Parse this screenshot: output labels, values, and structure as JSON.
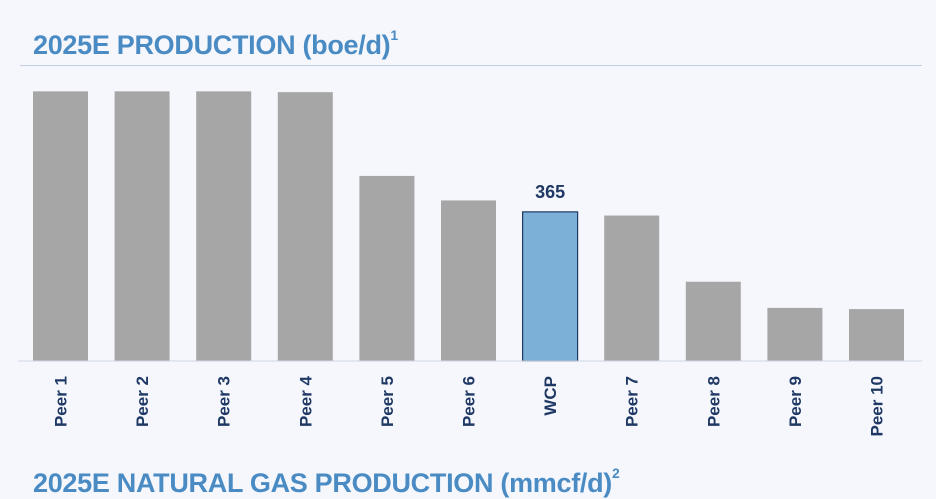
{
  "header": {
    "title": "2025E PRODUCTION (boe/d)",
    "title_footnote": "1"
  },
  "next_section": {
    "title": "2025E NATURAL GAS PRODUCTION (mmcf/d)",
    "title_footnote": "2"
  },
  "colors": {
    "peer_bar": "#a6a6a6",
    "highlight_bar": "#7cb0d6",
    "highlight_border": "#1f3864",
    "label_text": "#1f3864",
    "title": "#4a8bc3"
  },
  "chart_data": {
    "type": "bar",
    "title": "2025E PRODUCTION (boe/d)",
    "categories": [
      "Peer 1",
      "Peer 2",
      "Peer 3",
      "Peer 4",
      "Peer 5",
      "Peer 6",
      "WCP",
      "Peer 7",
      "Peer 8",
      "Peer 9",
      "Peer 10"
    ],
    "values": [
      660,
      660,
      660,
      658,
      453,
      393,
      365,
      356,
      194,
      130,
      127
    ],
    "highlight": "WCP",
    "data_labels": [
      {
        "category": "WCP",
        "text": "365"
      }
    ],
    "ylim": [
      0,
      700
    ],
    "y_axis_shown": false,
    "grid": false,
    "legend": "none"
  }
}
